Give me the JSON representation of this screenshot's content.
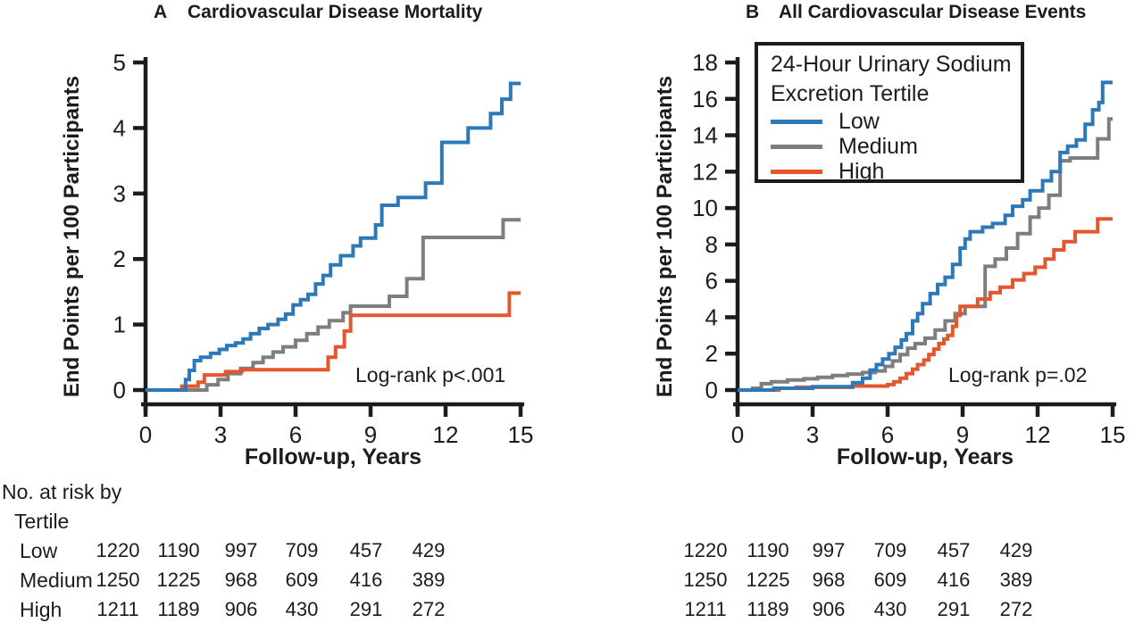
{
  "colors": {
    "low": "#2d79b8",
    "medium": "#7e7e7e",
    "high": "#e4572e",
    "axis": "#1c1c1c"
  },
  "chart_data": [
    {
      "type": "line",
      "step": true,
      "panel_label": "A",
      "title": "Cardiovascular Disease Mortality",
      "xlabel": "Follow-up, Years",
      "ylabel": "End Points per 100 Participants",
      "annotation": "Log-rank p<.001",
      "xlim": [
        0,
        15
      ],
      "ylim": [
        0,
        5
      ],
      "xticks": [
        0,
        3,
        6,
        9,
        12,
        15
      ],
      "yticks": [
        0,
        1,
        2,
        3,
        4,
        5
      ],
      "grid": false,
      "series": [
        {
          "name": "Low",
          "color": "#2d79b8",
          "points": [
            [
              0,
              0
            ],
            [
              1.5,
              0
            ],
            [
              1.6,
              0.16
            ],
            [
              1.75,
              0.3
            ],
            [
              1.95,
              0.45
            ],
            [
              2.2,
              0.5
            ],
            [
              2.6,
              0.56
            ],
            [
              2.95,
              0.62
            ],
            [
              3.25,
              0.68
            ],
            [
              3.6,
              0.72
            ],
            [
              3.9,
              0.78
            ],
            [
              4.2,
              0.86
            ],
            [
              4.55,
              0.94
            ],
            [
              4.9,
              1.0
            ],
            [
              5.3,
              1.08
            ],
            [
              5.6,
              1.16
            ],
            [
              5.9,
              1.3
            ],
            [
              6.2,
              1.38
            ],
            [
              6.5,
              1.46
            ],
            [
              6.8,
              1.62
            ],
            [
              7.1,
              1.75
            ],
            [
              7.4,
              1.91
            ],
            [
              7.8,
              2.05
            ],
            [
              8.3,
              2.2
            ],
            [
              8.6,
              2.32
            ],
            [
              9.2,
              2.52
            ],
            [
              9.45,
              2.82
            ],
            [
              10.1,
              2.94
            ],
            [
              11.2,
              3.16
            ],
            [
              11.85,
              3.78
            ],
            [
              12.9,
              4.0
            ],
            [
              13.8,
              4.22
            ],
            [
              14.25,
              4.44
            ],
            [
              14.6,
              4.68
            ],
            [
              15,
              4.68
            ]
          ]
        },
        {
          "name": "Medium",
          "color": "#7e7e7e",
          "points": [
            [
              0,
              0
            ],
            [
              2.3,
              0
            ],
            [
              2.45,
              0.08
            ],
            [
              2.9,
              0.16
            ],
            [
              3.3,
              0.25
            ],
            [
              3.8,
              0.33
            ],
            [
              4.3,
              0.42
            ],
            [
              4.7,
              0.5
            ],
            [
              5.1,
              0.58
            ],
            [
              5.5,
              0.66
            ],
            [
              6.0,
              0.76
            ],
            [
              6.45,
              0.86
            ],
            [
              6.9,
              0.96
            ],
            [
              7.35,
              1.06
            ],
            [
              7.9,
              1.18
            ],
            [
              8.2,
              1.28
            ],
            [
              9.75,
              1.43
            ],
            [
              10.45,
              1.7
            ],
            [
              11.1,
              2.33
            ],
            [
              14.3,
              2.6
            ],
            [
              15,
              2.6
            ]
          ]
        },
        {
          "name": "High",
          "color": "#e4572e",
          "points": [
            [
              0,
              0
            ],
            [
              1.35,
              0
            ],
            [
              1.45,
              0.06
            ],
            [
              2.1,
              0.12
            ],
            [
              2.35,
              0.23
            ],
            [
              3.2,
              0.28
            ],
            [
              3.85,
              0.31
            ],
            [
              7.3,
              0.5
            ],
            [
              7.6,
              0.66
            ],
            [
              7.95,
              0.9
            ],
            [
              8.2,
              1.14
            ],
            [
              14.55,
              1.48
            ],
            [
              15,
              1.48
            ]
          ]
        }
      ]
    },
    {
      "type": "line",
      "step": true,
      "panel_label": "B",
      "title": "All Cardiovascular Disease Events",
      "xlabel": "Follow-up, Years",
      "ylabel": "End Points per 100 Participants",
      "annotation": "Log-rank p=.02",
      "xlim": [
        0,
        15
      ],
      "ylim": [
        0,
        18
      ],
      "xticks": [
        0,
        3,
        6,
        9,
        12,
        15
      ],
      "yticks": [
        0,
        2,
        4,
        6,
        8,
        10,
        12,
        14,
        16,
        18
      ],
      "grid": false,
      "series": [
        {
          "name": "Low",
          "color": "#2d79b8",
          "points": [
            [
              0,
              0
            ],
            [
              1.35,
              0
            ],
            [
              1.45,
              0.1
            ],
            [
              3.0,
              0.18
            ],
            [
              4.6,
              0.4
            ],
            [
              5.0,
              0.65
            ],
            [
              5.3,
              1.1
            ],
            [
              5.55,
              1.4
            ],
            [
              5.8,
              1.7
            ],
            [
              6.05,
              2.0
            ],
            [
              6.3,
              2.35
            ],
            [
              6.55,
              2.75
            ],
            [
              6.75,
              3.1
            ],
            [
              7.0,
              3.8
            ],
            [
              7.2,
              4.2
            ],
            [
              7.4,
              4.75
            ],
            [
              7.7,
              5.3
            ],
            [
              8.0,
              5.8
            ],
            [
              8.3,
              6.2
            ],
            [
              8.6,
              6.9
            ],
            [
              8.9,
              7.8
            ],
            [
              9.1,
              8.3
            ],
            [
              9.3,
              8.7
            ],
            [
              9.8,
              8.95
            ],
            [
              10.2,
              9.15
            ],
            [
              10.7,
              9.6
            ],
            [
              11.0,
              10.1
            ],
            [
              11.4,
              10.45
            ],
            [
              11.7,
              10.95
            ],
            [
              12.2,
              11.5
            ],
            [
              12.55,
              12.0
            ],
            [
              12.9,
              13.05
            ],
            [
              13.2,
              13.4
            ],
            [
              13.55,
              13.75
            ],
            [
              13.9,
              14.6
            ],
            [
              14.2,
              15.4
            ],
            [
              14.45,
              15.8
            ],
            [
              14.6,
              16.9
            ],
            [
              15,
              16.9
            ]
          ]
        },
        {
          "name": "Medium",
          "color": "#7e7e7e",
          "points": [
            [
              0,
              0
            ],
            [
              0.6,
              0.1
            ],
            [
              0.95,
              0.35
            ],
            [
              1.35,
              0.45
            ],
            [
              2.0,
              0.55
            ],
            [
              2.65,
              0.62
            ],
            [
              3.2,
              0.7
            ],
            [
              3.8,
              0.8
            ],
            [
              4.4,
              0.88
            ],
            [
              5.0,
              0.96
            ],
            [
              5.5,
              1.05
            ],
            [
              5.9,
              1.3
            ],
            [
              6.2,
              1.6
            ],
            [
              6.5,
              1.95
            ],
            [
              6.8,
              2.3
            ],
            [
              7.1,
              2.55
            ],
            [
              7.5,
              2.85
            ],
            [
              7.9,
              3.3
            ],
            [
              8.3,
              3.8
            ],
            [
              8.7,
              4.2
            ],
            [
              9.1,
              4.6
            ],
            [
              9.9,
              6.8
            ],
            [
              10.3,
              7.2
            ],
            [
              10.75,
              7.8
            ],
            [
              11.2,
              8.6
            ],
            [
              11.7,
              9.5
            ],
            [
              12.05,
              10.0
            ],
            [
              12.45,
              10.7
            ],
            [
              12.9,
              12.6
            ],
            [
              13.3,
              12.75
            ],
            [
              14.4,
              13.8
            ],
            [
              14.85,
              14.9
            ],
            [
              15,
              14.9
            ]
          ]
        },
        {
          "name": "High",
          "color": "#e4572e",
          "points": [
            [
              0,
              0
            ],
            [
              1.55,
              0
            ],
            [
              1.65,
              0.1
            ],
            [
              2.35,
              0.15
            ],
            [
              4.6,
              0.22
            ],
            [
              6.0,
              0.3
            ],
            [
              6.25,
              0.45
            ],
            [
              6.5,
              0.65
            ],
            [
              6.75,
              0.9
            ],
            [
              7.0,
              1.15
            ],
            [
              7.2,
              1.4
            ],
            [
              7.45,
              1.65
            ],
            [
              7.65,
              1.95
            ],
            [
              7.85,
              2.25
            ],
            [
              8.05,
              2.55
            ],
            [
              8.25,
              2.8
            ],
            [
              8.4,
              3.0
            ],
            [
              8.6,
              3.5
            ],
            [
              8.75,
              4.1
            ],
            [
              8.9,
              4.6
            ],
            [
              9.6,
              5.0
            ],
            [
              10.1,
              5.35
            ],
            [
              10.5,
              5.65
            ],
            [
              11.0,
              6.05
            ],
            [
              11.45,
              6.4
            ],
            [
              11.9,
              6.75
            ],
            [
              12.3,
              7.2
            ],
            [
              12.65,
              7.7
            ],
            [
              13.05,
              8.15
            ],
            [
              13.5,
              8.7
            ],
            [
              14.4,
              9.4
            ],
            [
              15,
              9.4
            ]
          ]
        }
      ]
    }
  ],
  "legend": {
    "title_lines": [
      "24-Hour Urinary Sodium",
      "Excretion Tertile"
    ],
    "entries": [
      {
        "label": "Low",
        "color": "#2d79b8"
      },
      {
        "label": "Medium",
        "color": "#7e7e7e"
      },
      {
        "label": "High",
        "color": "#e4572e"
      }
    ]
  },
  "risk_table": {
    "heading_lines": [
      "No. at risk by",
      "Tertile"
    ],
    "rows": [
      {
        "label": "Low",
        "left": [
          1220,
          1190,
          997,
          709,
          457,
          429
        ],
        "right": [
          1220,
          1190,
          997,
          709,
          457,
          429
        ]
      },
      {
        "label": "Medium",
        "left": [
          1250,
          1225,
          968,
          609,
          416,
          389
        ],
        "right": [
          1250,
          1225,
          968,
          609,
          416,
          389
        ]
      },
      {
        "label": "High",
        "left": [
          1211,
          1189,
          906,
          430,
          291,
          272
        ],
        "right": [
          1211,
          1189,
          906,
          430,
          291,
          272
        ]
      }
    ]
  }
}
